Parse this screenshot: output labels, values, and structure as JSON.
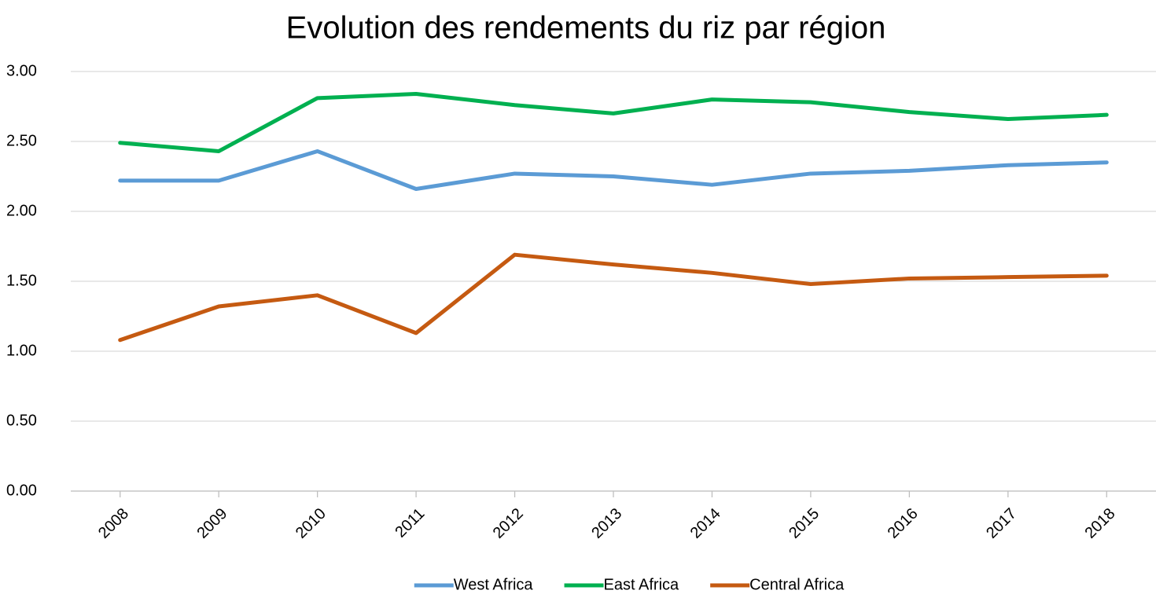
{
  "chart_data": {
    "type": "line",
    "title": "Evolution des rendements du riz par région",
    "categories": [
      "2008",
      "2009",
      "2010",
      "2011",
      "2012",
      "2013",
      "2014",
      "2015",
      "2016",
      "2017",
      "2018"
    ],
    "series": [
      {
        "name": "West Africa",
        "color": "#5b9bd5",
        "values": [
          2.22,
          2.22,
          2.43,
          2.16,
          2.27,
          2.25,
          2.19,
          2.27,
          2.29,
          2.33,
          2.35
        ]
      },
      {
        "name": "East Africa",
        "color": "#00b050",
        "values": [
          2.49,
          2.43,
          2.81,
          2.84,
          2.76,
          2.7,
          2.8,
          2.78,
          2.71,
          2.66,
          2.69
        ]
      },
      {
        "name": "Central Africa",
        "color": "#c55a11",
        "values": [
          1.08,
          1.32,
          1.4,
          1.13,
          1.69,
          1.62,
          1.56,
          1.48,
          1.52,
          1.53,
          1.54
        ]
      }
    ],
    "ylim": [
      0,
      3
    ],
    "yticks": [
      {
        "value": 0,
        "label": "0.00"
      },
      {
        "value": 0.5,
        "label": "0.50"
      },
      {
        "value": 1,
        "label": "1.00"
      },
      {
        "value": 1.5,
        "label": "1.50"
      },
      {
        "value": 2,
        "label": "2.00"
      },
      {
        "value": 2.5,
        "label": "2.50"
      },
      {
        "value": 3,
        "label": "3.00"
      }
    ],
    "grid": true,
    "legend": "bottom"
  }
}
